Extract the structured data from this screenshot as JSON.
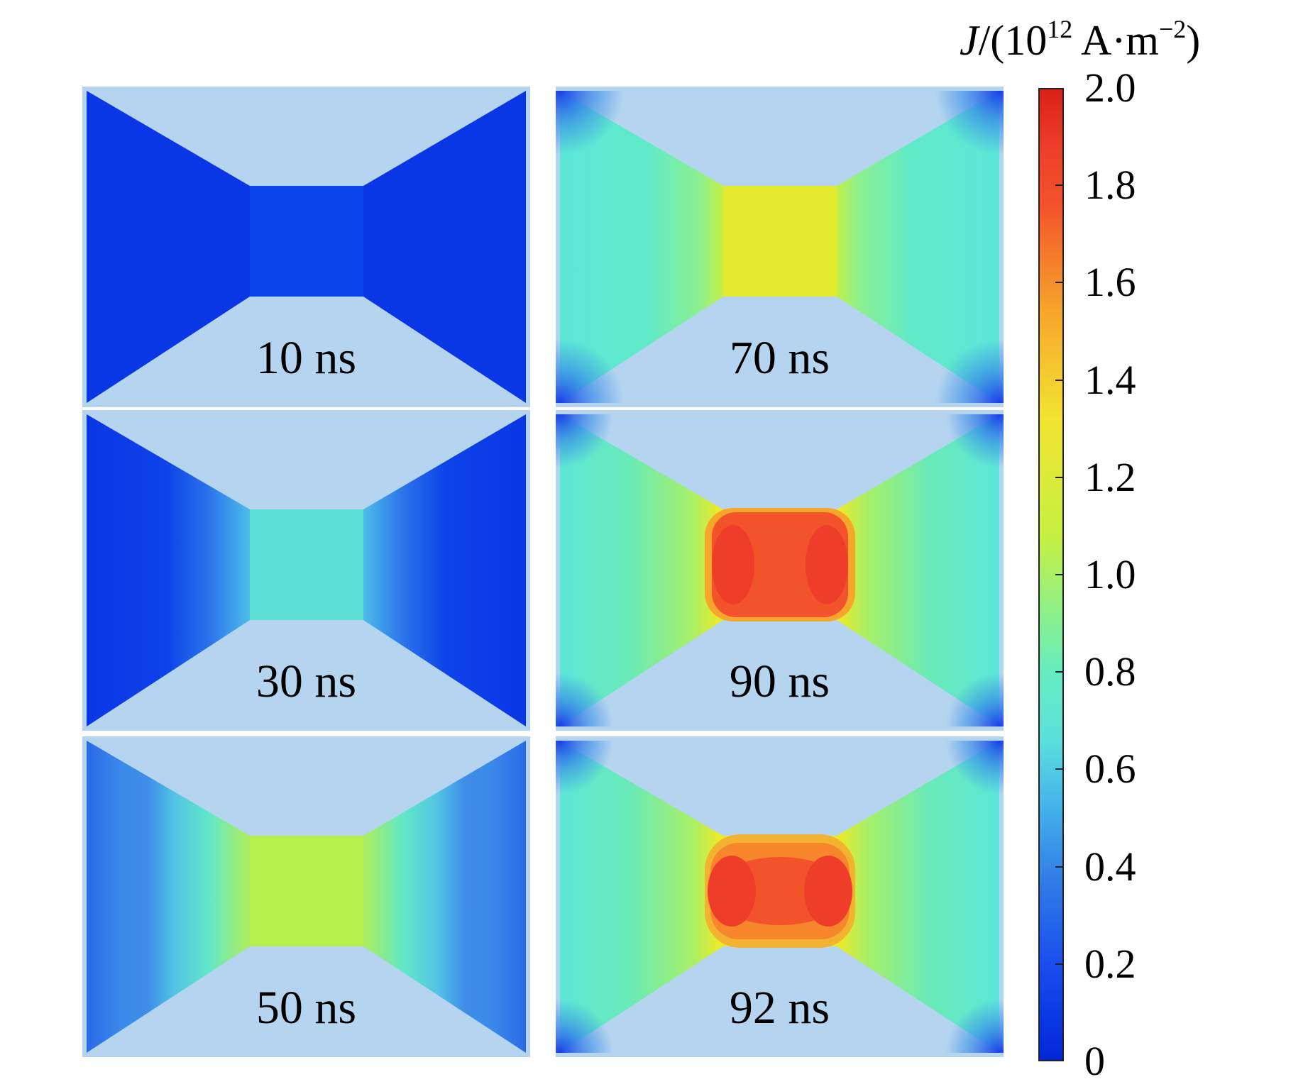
{
  "colorbar": {
    "symbol": "J",
    "title_rest": "/(10",
    "exponent": "12",
    "unit": " A·m",
    "unit_exponent": "−2",
    "close": ")",
    "ticks": [
      "2.0",
      "1.8",
      "1.6",
      "1.4",
      "1.2",
      "1.0",
      "0.8",
      "0.6",
      "0.4",
      "0.2",
      "0"
    ],
    "range": [
      0,
      2.0
    ],
    "colors": [
      "#0027d8",
      "#2f7ae8",
      "#5ce0dc",
      "#8df08a",
      "#c6f040",
      "#f2e430",
      "#f7a62c",
      "#ee3e2a",
      "#d92118"
    ]
  },
  "panels": [
    {
      "time": "10 ns"
    },
    {
      "time": "70 ns"
    },
    {
      "time": "30 ns"
    },
    {
      "time": "90 ns"
    },
    {
      "time": "50 ns"
    },
    {
      "time": "92 ns"
    }
  ],
  "colors": {
    "background_region": "#b4d4ef",
    "dark_blue": "#0a3ae6"
  }
}
